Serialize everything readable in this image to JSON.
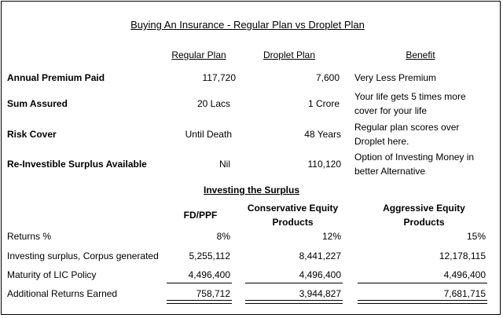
{
  "title": "Buying An Insurance - Regular Plan vs Droplet Plan",
  "comparison": {
    "headers": [
      "Regular Plan",
      "Droplet Plan",
      "Benefit"
    ],
    "rows": [
      {
        "label": "Annual Premium Paid",
        "regular": "117,720",
        "droplet": "7,600",
        "benefit": [
          "Very Less Premium"
        ]
      },
      {
        "label": "Sum Assured",
        "regular": "20 Lacs",
        "droplet": "1 Crore",
        "benefit": [
          "Your life gets 5 times more",
          "cover for your life"
        ]
      },
      {
        "label": "Risk Cover",
        "regular": "Until Death",
        "droplet": "48 Years",
        "benefit": [
          "Regular plan scores over",
          "Droplet here."
        ]
      },
      {
        "label": "Re-Investible Surplus Available",
        "regular": "Nil",
        "droplet": "110,120",
        "benefit": [
          "Option of Investing Money in",
          "better Alternative"
        ]
      }
    ]
  },
  "investing": {
    "title": "Investing the Surplus",
    "headers": [
      [
        "FD/PPF"
      ],
      [
        "Conservative Equity",
        "Products"
      ],
      [
        "Aggressive Equity",
        "Products"
      ]
    ],
    "rows": [
      {
        "label": "Returns %",
        "values": [
          "8%",
          "12%",
          "15%"
        ]
      },
      {
        "label": "Investing surplus, Corpus generated",
        "values": [
          "5,255,112",
          "8,441,227",
          "12,178,115"
        ]
      },
      {
        "label": "Maturity of LIC Policy",
        "values": [
          "4,496,400",
          "4,496,400",
          "4,496,400"
        ]
      },
      {
        "label": "Additional Returns Earned",
        "values": [
          "758,712",
          "3,944,827",
          "7,681,715"
        ]
      }
    ]
  }
}
